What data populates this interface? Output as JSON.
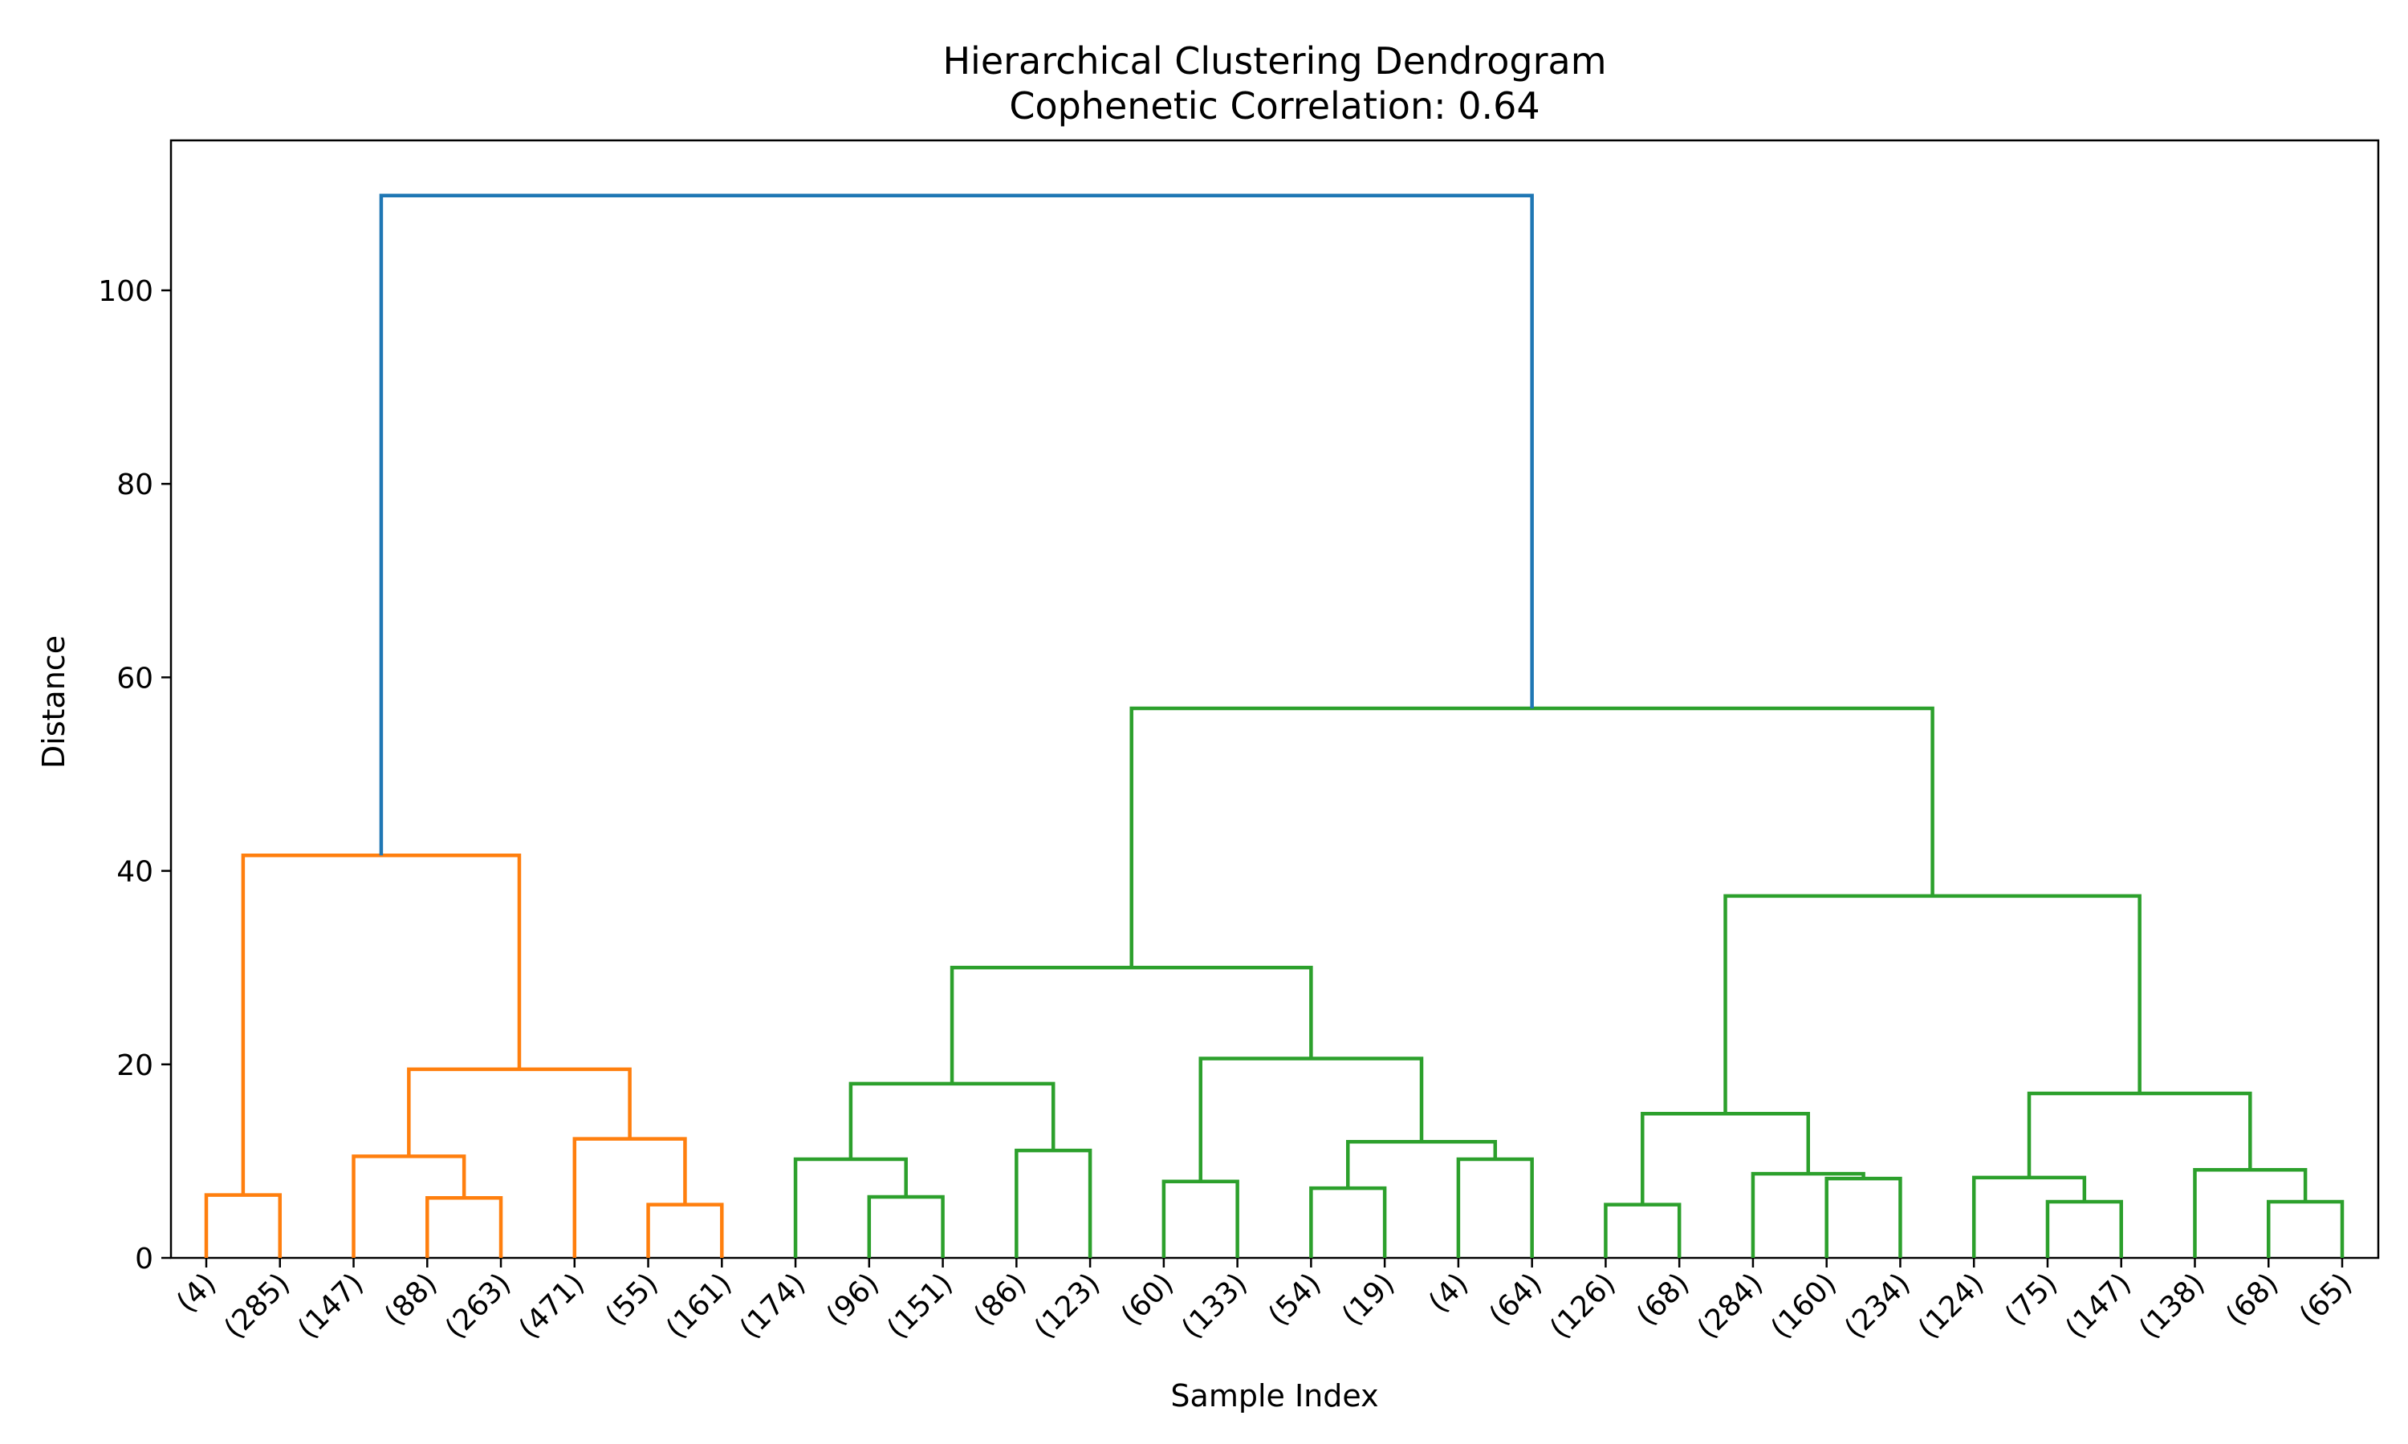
{
  "chart_data": {
    "type": "dendrogram",
    "title": "Hierarchical Clustering Dendrogram",
    "subtitle": "Cophenetic Correlation: 0.64",
    "xlabel": "Sample Index",
    "ylabel": "Distance",
    "ylim": [
      0,
      115.5
    ],
    "yticks": [
      0,
      20,
      40,
      60,
      80,
      100
    ],
    "grid": false,
    "colors": {
      "c1": "#ff7f0e",
      "c2": "#2ca02c",
      "root": "#1f77b4"
    },
    "leaves": [
      "(4)",
      "(285)",
      "(147)",
      "(88)",
      "(263)",
      "(471)",
      "(55)",
      "(161)",
      "(174)",
      "(96)",
      "(151)",
      "(86)",
      "(123)",
      "(60)",
      "(133)",
      "(54)",
      "(19)",
      "(4)",
      "(64)",
      "(126)",
      "(68)",
      "(284)",
      "(160)",
      "(234)",
      "(124)",
      "(75)",
      "(147)",
      "(138)",
      "(68)",
      "(65)"
    ],
    "merges": [
      {
        "left": 0,
        "right": 1,
        "height": 6.5,
        "color": "c1"
      },
      {
        "left": 3,
        "right": 4,
        "height": 6.2,
        "color": "c1"
      },
      {
        "left": 2,
        "right": "m1",
        "height": 10.5,
        "color": "c1"
      },
      {
        "left": 6,
        "right": 7,
        "height": 5.5,
        "color": "c1"
      },
      {
        "left": 5,
        "right": "m3",
        "height": 12.3,
        "color": "c1"
      },
      {
        "left": "m2",
        "right": "m4",
        "height": 19.5,
        "color": "c1"
      },
      {
        "left": "m0",
        "right": "m5",
        "height": 41.6,
        "color": "c1"
      },
      {
        "left": 9,
        "right": 10,
        "height": 6.3,
        "color": "c2"
      },
      {
        "left": 8,
        "right": "m7",
        "height": 10.2,
        "color": "c2"
      },
      {
        "left": 11,
        "right": 12,
        "height": 11.1,
        "color": "c2"
      },
      {
        "left": "m8",
        "right": "m9",
        "height": 18.0,
        "color": "c2"
      },
      {
        "left": 13,
        "right": 14,
        "height": 7.9,
        "color": "c2"
      },
      {
        "left": 15,
        "right": 16,
        "height": 7.2,
        "color": "c2"
      },
      {
        "left": 17,
        "right": 18,
        "height": 10.2,
        "color": "c2"
      },
      {
        "left": "m12",
        "right": "m13",
        "height": 12.0,
        "color": "c2"
      },
      {
        "left": "m11",
        "right": "m14",
        "height": 20.6,
        "color": "c2"
      },
      {
        "left": "m10",
        "right": "m15",
        "height": 30.0,
        "color": "c2"
      },
      {
        "left": 19,
        "right": 20,
        "height": 5.5,
        "color": "c2"
      },
      {
        "left": 22,
        "right": 23,
        "height": 8.2,
        "color": "c2"
      },
      {
        "left": 21,
        "right": "m18",
        "height": 8.7,
        "color": "c2"
      },
      {
        "left": "m17",
        "right": "m19",
        "height": 14.9,
        "color": "c2"
      },
      {
        "left": 25,
        "right": 26,
        "height": 5.8,
        "color": "c2"
      },
      {
        "left": 24,
        "right": "m21",
        "height": 8.3,
        "color": "c2"
      },
      {
        "left": 28,
        "right": 29,
        "height": 5.8,
        "color": "c2"
      },
      {
        "left": 27,
        "right": "m23",
        "height": 9.1,
        "color": "c2"
      },
      {
        "left": "m22",
        "right": "m24",
        "height": 17.0,
        "color": "c2"
      },
      {
        "left": "m20",
        "right": "m25",
        "height": 37.4,
        "color": "c2"
      },
      {
        "left": "m16",
        "right": "m26",
        "height": 56.8,
        "color": "c2"
      },
      {
        "left": "m6",
        "right": "m27",
        "height": 109.8,
        "color": "root"
      }
    ]
  }
}
